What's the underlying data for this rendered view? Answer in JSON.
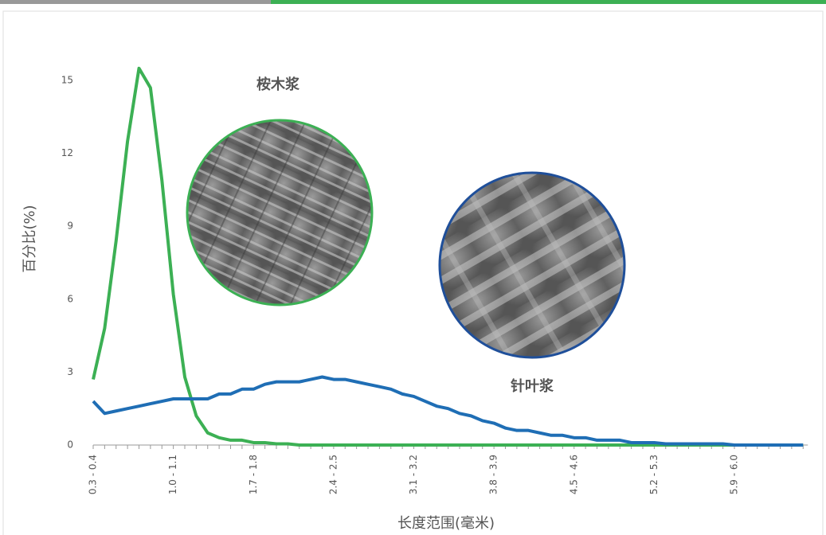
{
  "chart_data": {
    "type": "line",
    "x_label": "长度范围(毫米)",
    "y_label": "百分比(%)",
    "categories": [
      "0.3 - 0.4",
      null,
      null,
      null,
      null,
      null,
      null,
      "1.0 - 1.1",
      null,
      null,
      null,
      null,
      null,
      null,
      "1.7 - 1.8",
      null,
      null,
      null,
      null,
      null,
      null,
      "2.4 - 2.5",
      null,
      null,
      null,
      null,
      null,
      null,
      "3.1 - 3.2",
      null,
      null,
      null,
      null,
      null,
      null,
      "3.8 - 3.9",
      null,
      null,
      null,
      null,
      null,
      null,
      "4.5 - 4.6",
      null,
      null,
      null,
      null,
      null,
      null,
      "5.2 - 5.3",
      null,
      null,
      null,
      null,
      null,
      null,
      "5.9 - 6.0",
      null,
      null,
      null,
      null,
      null,
      null
    ],
    "series": [
      {
        "name": "桉木浆",
        "color": "#3cb054",
        "values": [
          2.7,
          4.8,
          8.4,
          12.5,
          15.5,
          14.7,
          10.9,
          6.2,
          2.8,
          1.2,
          0.5,
          0.3,
          0.2,
          0.2,
          0.1,
          0.1,
          0.05,
          0.05,
          0,
          0,
          0,
          0,
          0,
          0,
          0,
          0,
          0,
          0,
          0,
          0,
          0,
          0,
          0,
          0,
          0,
          0,
          0,
          0,
          0,
          0,
          0,
          0,
          0,
          0,
          0,
          0,
          0,
          0,
          0,
          0,
          0,
          0,
          0,
          0,
          0,
          0,
          0,
          0,
          0,
          0,
          0,
          0,
          0
        ]
      },
      {
        "name": "针叶浆",
        "color": "#1f6eb5",
        "values": [
          1.8,
          1.3,
          1.4,
          1.5,
          1.6,
          1.7,
          1.8,
          1.9,
          1.9,
          1.9,
          1.9,
          2.1,
          2.1,
          2.3,
          2.3,
          2.5,
          2.6,
          2.6,
          2.6,
          2.7,
          2.8,
          2.7,
          2.7,
          2.6,
          2.5,
          2.4,
          2.3,
          2.1,
          2.0,
          1.8,
          1.6,
          1.5,
          1.3,
          1.2,
          1.0,
          0.9,
          0.7,
          0.6,
          0.6,
          0.5,
          0.4,
          0.4,
          0.3,
          0.3,
          0.2,
          0.2,
          0.2,
          0.1,
          0.1,
          0.1,
          0.05,
          0.05,
          0.05,
          0.05,
          0.05,
          0.05,
          0,
          0,
          0,
          0,
          0,
          0,
          0
        ]
      }
    ],
    "ylim": [
      0,
      17
    ],
    "yticks": [
      0,
      3,
      6,
      9,
      12,
      15
    ]
  }
}
